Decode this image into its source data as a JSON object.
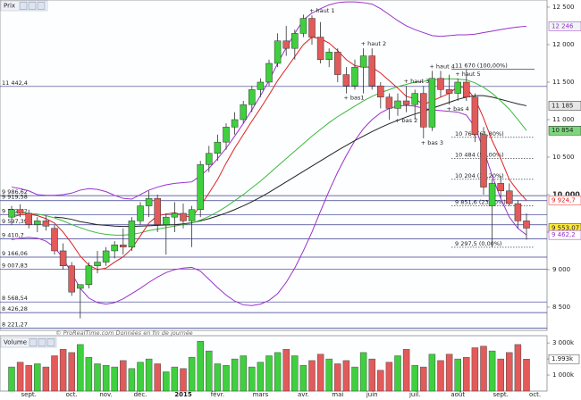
{
  "chart_data": [
    {
      "type": "candlestick",
      "title": "Prix",
      "watermark": "© ProRealTime.com Données en fin de journée",
      "categories": [
        null,
        null,
        "sept.",
        null,
        null,
        null,
        null,
        "oct.",
        null,
        null,
        null,
        "nov.",
        null,
        null,
        null,
        "déc.",
        null,
        null,
        null,
        null,
        "2015",
        null,
        null,
        null,
        "févr.",
        null,
        null,
        null,
        null,
        "mars",
        null,
        null,
        null,
        null,
        "avr.",
        null,
        null,
        null,
        "mai",
        null,
        null,
        null,
        "juin",
        null,
        null,
        null,
        null,
        "juil.",
        null,
        null,
        null,
        null,
        "août",
        null,
        null,
        null,
        null,
        "sept.",
        null,
        null,
        null,
        "oct."
      ],
      "open": [
        9700,
        9800,
        9750,
        9600,
        9650,
        9550,
        9250,
        9050,
        8750,
        8800,
        9050,
        9100,
        9250,
        9330,
        9300,
        9650,
        9850,
        9950,
        9600,
        9700,
        9750,
        9650,
        9800,
        10400,
        10550,
        10700,
        10900,
        11000,
        11200,
        11400,
        11500,
        11750,
        12050,
        11950,
        12150,
        12350,
        12100,
        11800,
        11900,
        11600,
        11450,
        11700,
        11850,
        11450,
        11300,
        11150,
        11250,
        11200,
        11350,
        10900,
        11550,
        11400,
        11350,
        11500,
        11300,
        10800,
        9850,
        10150,
        10050,
        9880,
        9650,
        null
      ],
      "high": [
        9850,
        9870,
        9800,
        9700,
        9720,
        9600,
        9350,
        9100,
        8800,
        9100,
        9250,
        9300,
        9380,
        9550,
        9700,
        9900,
        10050,
        10000,
        9750,
        9900,
        9880,
        9850,
        10450,
        10650,
        10800,
        10950,
        11100,
        11250,
        11450,
        11550,
        11800,
        12150,
        12250,
        12200,
        12400,
        12390,
        12300,
        11950,
        11950,
        11700,
        11800,
        11950,
        11950,
        11500,
        11350,
        11350,
        11450,
        11400,
        11450,
        11650,
        11650,
        11600,
        11550,
        11670,
        11350,
        10900,
        10200,
        10250,
        10150,
        9924.7,
        9750,
        null
      ],
      "low": [
        9600,
        9700,
        9550,
        9500,
        9520,
        9200,
        9000,
        8650,
        8350,
        8750,
        8950,
        9050,
        9150,
        9200,
        9250,
        9600,
        9700,
        9500,
        9200,
        9500,
        9550,
        9300,
        9700,
        10300,
        10450,
        10600,
        10800,
        10950,
        11100,
        11300,
        11450,
        11700,
        11850,
        11800,
        12100,
        12000,
        11750,
        11700,
        11500,
        11350,
        11400,
        11350,
        11400,
        11150,
        11000,
        11050,
        11100,
        11000,
        10750,
        10850,
        11300,
        11200,
        11250,
        11250,
        10700,
        10000,
        9297.5,
        9950,
        9850,
        9550,
        9400,
        null
      ],
      "close": [
        9800,
        9750,
        9600,
        9650,
        9580,
        9250,
        9050,
        8700,
        8800,
        9050,
        9100,
        9250,
        9330,
        9300,
        9650,
        9850,
        9950,
        9600,
        9700,
        9750,
        9650,
        9800,
        10400,
        10550,
        10700,
        10900,
        11000,
        11200,
        11400,
        11500,
        11750,
        12050,
        11950,
        12150,
        12350,
        12100,
        11800,
        11900,
        11600,
        11450,
        11700,
        11850,
        11450,
        11300,
        11150,
        11250,
        11200,
        11350,
        10900,
        11550,
        11400,
        11350,
        11500,
        11300,
        10800,
        10100,
        10150,
        10050,
        9880,
        9650,
        9553.07,
        null
      ],
      "up_color": "#3fcf3f",
      "down_color": "#e25a5a",
      "outline": "#333333",
      "notes": [
        {
          "candle": 35,
          "at": "high",
          "text": "+ haut 1"
        },
        {
          "candle": 41,
          "at": "high",
          "text": "+ haut 2"
        },
        {
          "candle": 46,
          "at": "high",
          "text": "+ haut 3"
        },
        {
          "candle": 49,
          "at": "high",
          "text": "+ haut 4"
        },
        {
          "candle": 52,
          "at": "high",
          "text": "+ haut 5"
        },
        {
          "candle": 39,
          "at": "low",
          "text": "+ bas1"
        },
        {
          "candle": 45,
          "at": "low",
          "text": "+ bas 2"
        },
        {
          "candle": 48,
          "at": "low",
          "text": "+ bas 3"
        },
        {
          "candle": 51,
          "at": "low",
          "text": "+ bas 4"
        }
      ],
      "series": [
        {
          "color": "#9932cc",
          "values": [
            10100,
            10080,
            10050,
            10000,
            9990,
            9990,
            10000,
            10020,
            10060,
            10080,
            10070,
            10040,
            9990,
            9950,
            9940,
            10000,
            10060,
            10100,
            10130,
            10150,
            10160,
            10170,
            10250,
            10350,
            10480,
            10620,
            10780,
            10950,
            11130,
            11320,
            11520,
            11750,
            11960,
            12150,
            12330,
            12420,
            12480,
            12530,
            12560,
            12570,
            12570,
            12560,
            12540,
            12480,
            12400,
            12320,
            12250,
            12200,
            12160,
            12120,
            12110,
            12120,
            12130,
            12130,
            12140,
            12160,
            12180,
            12200,
            12220,
            12235,
            12246,
            null
          ]
        },
        {
          "color": "#9932cc",
          "values": [
            9400,
            9420,
            9430,
            9420,
            9380,
            9300,
            9150,
            8950,
            8750,
            8620,
            8560,
            8540,
            8560,
            8610,
            8680,
            8750,
            8830,
            8900,
            8960,
            9000,
            9020,
            9030,
            8980,
            8870,
            8760,
            8660,
            8580,
            8530,
            8520,
            8540,
            8590,
            8680,
            8830,
            9020,
            9250,
            9500,
            9780,
            10050,
            10300,
            10520,
            10720,
            10880,
            11000,
            11090,
            11150,
            11180,
            11190,
            11180,
            11150,
            11130,
            11120,
            11110,
            11100,
            11060,
            10900,
            10600,
            10250,
            9950,
            9700,
            9550,
            9462.2,
            null
          ]
        },
        {
          "color": "#222222",
          "values": [
            null,
            null,
            null,
            null,
            null,
            9700,
            9690,
            9670,
            9640,
            9620,
            9600,
            9590,
            9580,
            9575,
            9575,
            9580,
            9585,
            9590,
            9595,
            9600,
            9610,
            9625,
            9650,
            9680,
            9715,
            9755,
            9800,
            9850,
            9905,
            9965,
            10030,
            10100,
            10170,
            10240,
            10310,
            10380,
            10450,
            10520,
            10590,
            10655,
            10720,
            10780,
            10840,
            10895,
            10945,
            10990,
            11035,
            11075,
            11110,
            11150,
            11190,
            11230,
            11270,
            11300,
            11320,
            11320,
            11300,
            11270,
            11240,
            11210,
            11185,
            null
          ]
        },
        {
          "color": "#3cb83c",
          "values": [
            9760,
            9760,
            9750,
            9740,
            9720,
            9690,
            9650,
            9600,
            9560,
            9520,
            9490,
            9470,
            9460,
            9460,
            9470,
            9490,
            9520,
            9540,
            9560,
            9580,
            9600,
            9620,
            9660,
            9710,
            9770,
            9840,
            9920,
            10000,
            10090,
            10180,
            10280,
            10380,
            10480,
            10580,
            10680,
            10780,
            10870,
            10960,
            11040,
            11110,
            11180,
            11250,
            11310,
            11360,
            11400,
            11440,
            11470,
            11500,
            11510,
            11530,
            11540,
            11545,
            11540,
            11530,
            11490,
            11430,
            11350,
            11250,
            11140,
            11000,
            10854,
            null
          ]
        },
        {
          "color": "#e02020",
          "values": [
            9700,
            9730,
            9740,
            9720,
            9680,
            9620,
            9500,
            9350,
            9180,
            9060,
            9000,
            9020,
            9100,
            9170,
            9280,
            9450,
            9620,
            9720,
            9740,
            9760,
            9720,
            9700,
            9850,
            10020,
            10200,
            10420,
            10620,
            10800,
            10980,
            11150,
            11330,
            11520,
            11680,
            11840,
            12000,
            12100,
            12080,
            12020,
            11920,
            11800,
            11720,
            11700,
            11700,
            11620,
            11520,
            11420,
            11310,
            11280,
            11200,
            11250,
            11300,
            11350,
            11440,
            11420,
            11280,
            11020,
            10720,
            10480,
            10200,
            10050,
            9924.7,
            null
          ]
        }
      ],
      "ylim": [
        8190,
        12595
      ],
      "yticks": [
        {
          "value": 12500,
          "label": "12 500"
        },
        {
          "value": 12000,
          "label": "12 000"
        },
        {
          "value": 11500,
          "label": "11 500"
        },
        {
          "value": 11000,
          "label": "11 000"
        },
        {
          "value": 10500,
          "label": "10 500"
        },
        {
          "value": 10000,
          "label": "10.000"
        },
        {
          "value": 9500,
          "label": "9 500"
        },
        {
          "value": 9000,
          "label": "9 000"
        },
        {
          "value": 8500,
          "label": "8 500"
        }
      ],
      "hlines": [
        {
          "value": 11442.4,
          "label": "11 442,4"
        },
        {
          "value": 9986.62,
          "label": "9 986,62"
        },
        {
          "value": 9919.58,
          "label": "9 919,58"
        },
        {
          "value": 9732.42,
          "label": "9 732,42"
        },
        {
          "value": 9597.39,
          "label": "9 597,39"
        },
        {
          "value": 9410.7,
          "label": "9 410,7"
        },
        {
          "value": 9166.06,
          "label": "9 166,06"
        },
        {
          "value": 9007.83,
          "label": "9 007,83"
        },
        {
          "value": 8568.54,
          "label": "8 568,54"
        },
        {
          "value": 8426.28,
          "label": "8 426,28"
        },
        {
          "value": 8221.27,
          "label": "8 221,27"
        }
      ],
      "fibonacci": [
        {
          "value": 11670,
          "label": "11 670 (100,00%)"
        },
        {
          "value": 10764,
          "label": "10 764 (61,80%)"
        },
        {
          "value": 10484,
          "label": "10 484 (50,00%)"
        },
        {
          "value": 10204,
          "label": "10 204 (38,20%)"
        },
        {
          "value": 9851.6,
          "label": "9 851,6 (23,60%)"
        },
        {
          "value": 9297.5,
          "label": "9 297,5 (0,00%)"
        }
      ],
      "price_labels": [
        {
          "value": 12246,
          "label": "12 246",
          "color": "#9932cc",
          "bg": "#eef6f2"
        },
        {
          "value": 11185,
          "label": "11 185",
          "color": "#222222",
          "bg": "#e6e6e6"
        },
        {
          "value": 10854,
          "label": "10 854",
          "color": "#222222",
          "bg": "#7cd67c"
        },
        {
          "value": 9924.7,
          "label": "9 924,7",
          "color": "#e02020",
          "bg": "#ffffff"
        },
        {
          "value": 9553.07,
          "label": "9 553,07",
          "color": "#222222",
          "bg": "#ffea3a"
        },
        {
          "value": 9462.2,
          "label": "9 462,2",
          "color": "#9932cc",
          "bg": "#ffffff"
        }
      ]
    },
    {
      "type": "bar",
      "title": "Volume",
      "values": [
        1500,
        1800,
        1600,
        1700,
        1500,
        2200,
        2600,
        2400,
        2900,
        2100,
        1700,
        1600,
        1500,
        1900,
        1400,
        1800,
        2000,
        1700,
        1200,
        1500,
        1400,
        2100,
        3100,
        2500,
        1700,
        1600,
        2000,
        2200,
        1500,
        1800,
        2200,
        2400,
        2600,
        2200,
        1600,
        1900,
        2300,
        2000,
        1700,
        1900,
        1500,
        2400,
        2000,
        1300,
        1800,
        2200,
        2600,
        1600,
        1500,
        2300,
        1900,
        2300,
        2000,
        2100,
        2700,
        2800,
        2500,
        2000,
        2400,
        2900,
        1993,
        null
      ],
      "ylim": [
        0,
        3450
      ],
      "yticks": [
        {
          "value": 3000,
          "label": "3 000k"
        },
        {
          "value": 2000,
          "label": "2 000k"
        },
        {
          "value": 1000,
          "label": "1 000k"
        }
      ],
      "last_label": {
        "value": 1993,
        "label": "1.993k"
      }
    }
  ]
}
